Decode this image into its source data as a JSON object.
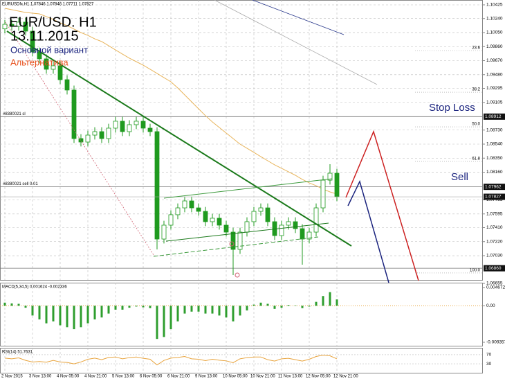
{
  "chart_data": {
    "type": "candlestick",
    "header": "EURUSDfx,H1  1.07846 1.07846 1.07711 1.07827",
    "title": "EUR/USD. H1",
    "subtitle": "13.11.2015",
    "annotations": {
      "main_variant": "Основной вариант",
      "alternative": "Альтернатива",
      "stop_loss": "Stop Loss",
      "sell": "Sell"
    },
    "categories": [
      "2 Nov 2015",
      null,
      null,
      null,
      "3 Nov 13:00",
      null,
      null,
      null,
      "4 Nov 05:00",
      null,
      null,
      null,
      "4 Nov 21:00",
      null,
      null,
      null,
      "5 Nov 13:00",
      null,
      null,
      null,
      "6 Nov 05:00",
      null,
      null,
      null,
      "6 Nov 21:00",
      null,
      null,
      null,
      "9 Nov 13:00",
      null,
      null,
      null,
      "10 Nov 05:00",
      null,
      null,
      null,
      "10 Nov 21:00",
      null,
      null,
      null,
      "11 Nov 13:00",
      null,
      null,
      null,
      "12 Nov 05:00",
      null,
      null,
      null,
      "12 Nov 21:00"
    ],
    "open": [
      1.101,
      1.10162,
      1.10134,
      1.10191,
      1.10069,
      1.09787,
      1.09694,
      1.09553,
      1.096,
      1.09412,
      1.09272,
      1.08615,
      1.08568,
      1.08662,
      1.08709,
      1.08615,
      1.08756,
      1.0885,
      1.08709,
      1.08803,
      1.0885,
      1.08756,
      1.08709,
      1.07255,
      1.07443,
      1.07584,
      1.07677,
      1.07771,
      1.07677,
      1.0763,
      1.0749,
      1.07537,
      1.07443,
      1.07349,
      1.07115,
      1.07349,
      1.0749,
      1.0763,
      1.07677,
      1.0749,
      1.07302,
      1.07443,
      1.0749,
      1.07396,
      1.07255,
      1.07349,
      1.07677,
      1.08052,
      1.08146
    ],
    "high": [
      1.10222,
      1.10222,
      1.10251,
      1.10251,
      1.10129,
      1.09847,
      1.09754,
      1.0966,
      1.0966,
      1.09472,
      1.09332,
      1.08675,
      1.08722,
      1.08769,
      1.08769,
      1.08816,
      1.0891,
      1.0891,
      1.08863,
      1.0891,
      1.0891,
      1.08816,
      1.08769,
      1.07503,
      1.07644,
      1.07737,
      1.07831,
      1.07831,
      1.07737,
      1.0769,
      1.07597,
      1.07597,
      1.07503,
      1.07409,
      1.07409,
      1.0755,
      1.0769,
      1.07737,
      1.07737,
      1.0755,
      1.07503,
      1.0755,
      1.0755,
      1.07456,
      1.07409,
      1.07737,
      1.08112,
      1.08268,
      1.08206
    ],
    "low": [
      1.1004,
      1.10074,
      1.10074,
      1.10009,
      1.09727,
      1.09634,
      1.09493,
      1.09493,
      1.09352,
      1.09212,
      1.08555,
      1.08508,
      1.08508,
      1.08602,
      1.08555,
      1.08555,
      1.08696,
      1.08649,
      1.08649,
      1.08743,
      1.08696,
      1.08649,
      1.07115,
      1.07195,
      1.07383,
      1.07524,
      1.07617,
      1.07617,
      1.0757,
      1.0743,
      1.0743,
      1.07383,
      1.07289,
      1.06768,
      1.07055,
      1.07289,
      1.0743,
      1.0757,
      1.0743,
      1.07242,
      1.07242,
      1.07383,
      1.07336,
      1.06908,
      1.07195,
      1.07289,
      1.07617,
      1.07992,
      1.07767
    ],
    "close": [
      1.10162,
      1.10134,
      1.10191,
      1.10069,
      1.09787,
      1.09694,
      1.09553,
      1.096,
      1.09412,
      1.09272,
      1.08615,
      1.08568,
      1.08662,
      1.08709,
      1.08615,
      1.08756,
      1.0885,
      1.08709,
      1.08803,
      1.0885,
      1.08756,
      1.08709,
      1.07255,
      1.07443,
      1.07584,
      1.07677,
      1.07771,
      1.07677,
      1.0763,
      1.0749,
      1.07537,
      1.07443,
      1.07349,
      1.07115,
      1.07349,
      1.0749,
      1.0763,
      1.07677,
      1.0749,
      1.07302,
      1.07443,
      1.0749,
      1.07396,
      1.07255,
      1.07349,
      1.07677,
      1.08052,
      1.08146,
      1.07827
    ],
    "color": "#1f9a1f",
    "ylim": [
      1.06655,
      1.10425
    ],
    "yticks": [
      {
        "value": 1.10425,
        "label": "1.10425"
      },
      {
        "value": 1.1024,
        "label": "1.10240"
      },
      {
        "value": 1.1005,
        "label": "1.10050"
      },
      {
        "value": 1.0986,
        "label": "1.09860"
      },
      {
        "value": 1.0967,
        "label": "1.09670"
      },
      {
        "value": 1.0948,
        "label": "1.09480"
      },
      {
        "value": 1.09295,
        "label": "1.09295"
      },
      {
        "value": 1.09105,
        "label": "1.09105"
      },
      {
        "value": 1.0873,
        "label": "1.08730"
      },
      {
        "value": 1.0854,
        "label": "1.08540"
      },
      {
        "value": 1.0835,
        "label": "1.08350"
      },
      {
        "value": 1.0816,
        "label": "1.08160"
      },
      {
        "value": 1.07785,
        "label": "1.07785"
      },
      {
        "value": 1.07595,
        "label": "1.07595"
      },
      {
        "value": 1.0741,
        "label": "1.07410"
      },
      {
        "value": 1.0722,
        "label": "1.07220"
      },
      {
        "value": 1.0703,
        "label": "1.07030"
      },
      {
        "value": 1.06655,
        "label": "1.06655"
      }
    ],
    "grid": true,
    "ma": {
      "color": "#e8b45a",
      "values": [
        1.10378,
        1.10359,
        1.10341,
        1.10322,
        1.10312,
        1.10303,
        1.10266,
        1.10228,
        1.10181,
        1.10144,
        1.10097,
        1.1005,
        1.10012,
        1.09965,
        1.09928,
        1.09872,
        1.09815,
        1.09759,
        1.09703,
        1.09656,
        1.09609,
        1.09553,
        1.09497,
        1.0944,
        1.09384,
        1.093,
        1.09206,
        1.09112,
        1.09018,
        1.08925,
        1.0884,
        1.08765,
        1.0869,
        1.08615,
        1.0854,
        1.08484,
        1.08428,
        1.08371,
        1.08315,
        1.08259,
        1.08212,
        1.08165,
        1.08118,
        1.08062,
        1.08015,
        1.07977,
        1.07931,
        1.07893,
        1.07865
      ]
    },
    "levels": [
      {
        "name": "#8380021 sl",
        "price": {
          "value": 1.08912,
          "label": "1.08912"
        }
      },
      {
        "name": "#8380021 sell 0.01",
        "price": {
          "value": 1.07962,
          "label": "1.07962"
        }
      },
      {
        "name": null,
        "price": {
          "value": 1.0686,
          "label": "1.06860"
        }
      }
    ],
    "fib": [
      {
        "name": "23.6",
        "price": 1.09806
      },
      {
        "name": "38.2",
        "price": 1.09243
      },
      {
        "name": "50.0",
        "price": 1.08774
      },
      {
        "name": "61.8",
        "price": 1.08306
      },
      {
        "name": "100.0",
        "price": 1.06796
      }
    ],
    "macd": {
      "label": "MACD(5,34,5) 0.001624 -0.002336",
      "color": "#2e9e2e",
      "values": [
        0.0008,
        0.0006,
        0.0005,
        -0.0005,
        -0.0025,
        -0.0035,
        -0.0045,
        -0.004,
        -0.005,
        -0.0055,
        -0.006,
        -0.0055,
        -0.0045,
        -0.0035,
        -0.003,
        -0.002,
        -0.001,
        -0.001,
        -0.0005,
        -0.0002,
        -0.0004,
        -0.0006,
        -0.0085,
        -0.008,
        -0.006,
        -0.004,
        -0.002,
        -0.0015,
        -0.0015,
        -0.002,
        -0.002,
        -0.0025,
        -0.003,
        -0.004,
        -0.0025,
        -0.0012,
        0.0003,
        0.0008,
        0.0005,
        -0.0008,
        -0.0005,
        0.0002,
        0.0001,
        -0.0006,
        -0.0002,
        0.001,
        0.0025,
        0.0035,
        0.001624
      ],
      "ylim": [
        -0.009357,
        0.004672
      ],
      "yticks": [
        0.004672,
        {
          "value": 0,
          "label": "0.00"
        },
        -0.009357
      ]
    },
    "rsi": {
      "label": "RSI(14) 51.7631",
      "color": "#e8a33c",
      "values": [
        55,
        52,
        56,
        45,
        38,
        40,
        37,
        45,
        38,
        36,
        30,
        38,
        50,
        55,
        48,
        58,
        60,
        52,
        57,
        60,
        54,
        50,
        25,
        45,
        55,
        58,
        62,
        52,
        50,
        44,
        50,
        46,
        43,
        35,
        52,
        57,
        60,
        60,
        48,
        42,
        52,
        54,
        48,
        42,
        50,
        62,
        68,
        65,
        51.7631
      ],
      "ylim": [
        0,
        100
      ],
      "yticks": [
        70,
        30
      ]
    }
  }
}
